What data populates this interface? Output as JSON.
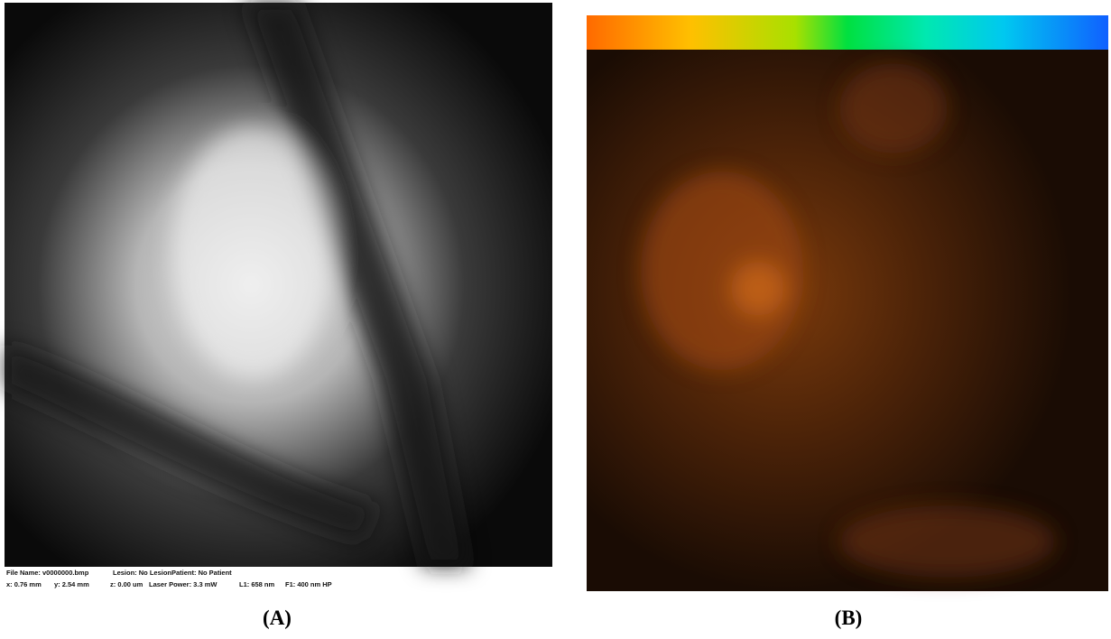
{
  "panels": [
    {
      "label": "(A)",
      "status_lines": [
        [
          "File Name: v0000000.bmp",
          "Lesion: No Lesion",
          "Patient: No Patient"
        ],
        [
          "x: 0.76 mm",
          "y: 2.54 mm",
          "z: 0.00 um",
          "Laser Power: 3.3 mW",
          "L1: 658 nm",
          "F1: 400 nm HP"
        ]
      ]
    },
    {
      "label": "(B)"
    }
  ]
}
